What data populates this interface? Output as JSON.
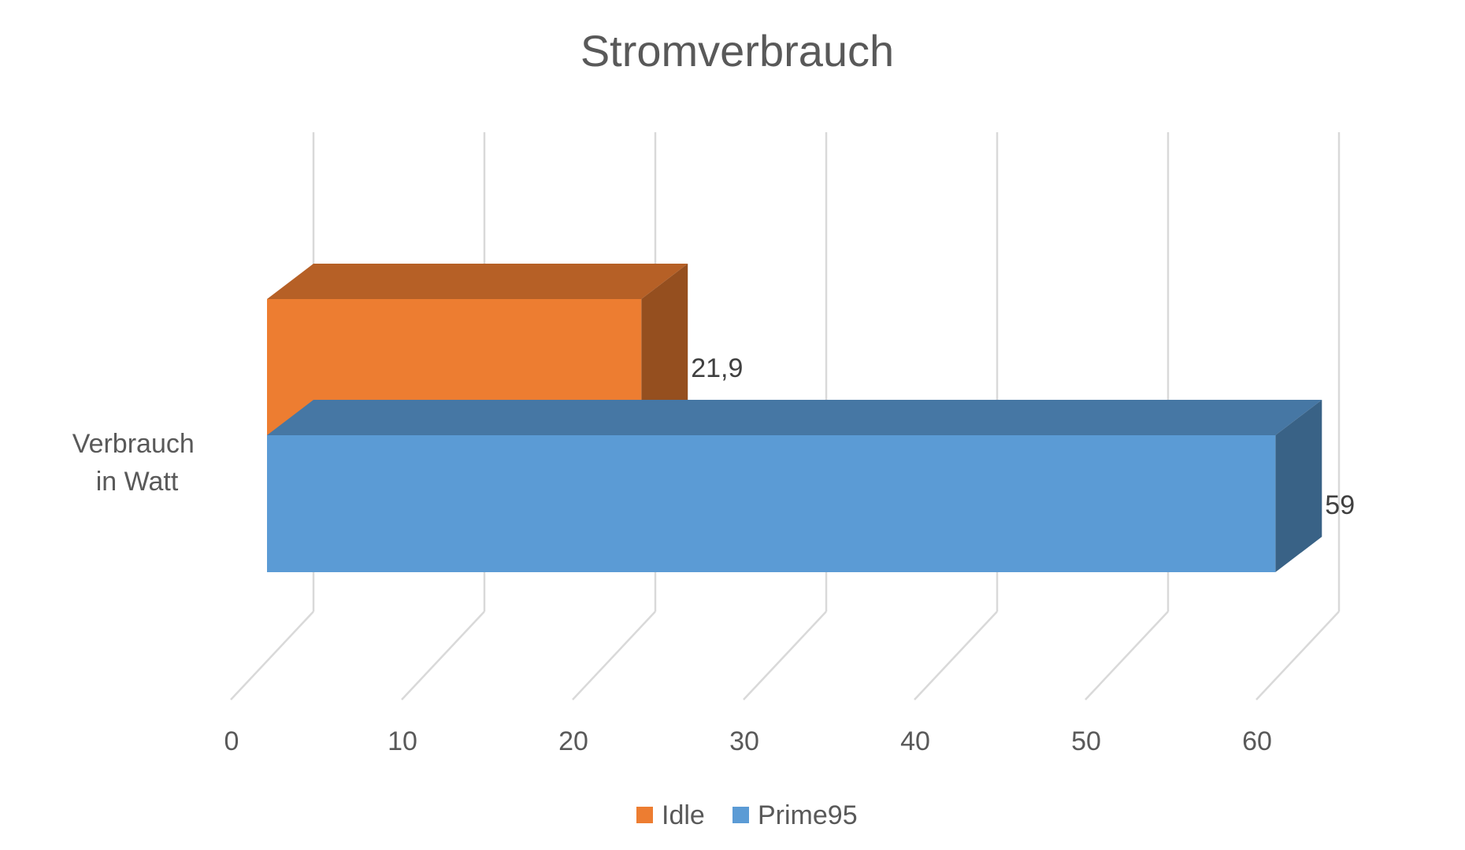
{
  "chart_data": {
    "type": "bar",
    "orientation": "horizontal",
    "style": "3d",
    "title": "Stromverbrauch",
    "categories": [
      "Verbrauch in Watt"
    ],
    "category_lines": [
      "Verbrauch",
      "in Watt"
    ],
    "series": [
      {
        "name": "Idle",
        "values": [
          21.9
        ],
        "label": "21,9",
        "color": "#ED7D31"
      },
      {
        "name": "Prime95",
        "values": [
          59
        ],
        "label": "59",
        "color": "#5B9BD5"
      }
    ],
    "xlim": [
      0,
      60
    ],
    "xticks": [
      0,
      10,
      20,
      30,
      40,
      50,
      60
    ],
    "xtick_labels": [
      "0",
      "10",
      "20",
      "30",
      "40",
      "50",
      "60"
    ],
    "grid": true,
    "legend": "bottom"
  }
}
